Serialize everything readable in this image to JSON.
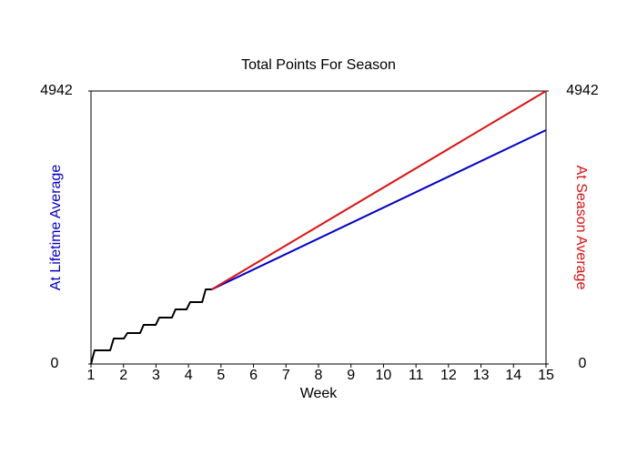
{
  "chart_data": {
    "type": "line",
    "title": "Total Points For Season",
    "xlabel": "Week",
    "xlim": [
      1,
      15
    ],
    "xticks": [
      1,
      2,
      3,
      4,
      5,
      6,
      7,
      8,
      9,
      10,
      11,
      12,
      13,
      14,
      15
    ],
    "ylim": [
      0,
      4942
    ],
    "yticks": [
      0,
      4942
    ],
    "y2lim": [
      0,
      4942
    ],
    "y2ticks": [
      0,
      4942
    ],
    "series": [
      {
        "color": "#000000",
        "x": [
          1,
          1.11,
          1.59,
          1.7,
          2.01,
          2.12,
          2.51,
          2.62,
          2.99,
          3.1,
          3.49,
          3.6,
          3.94,
          4.05,
          4.42,
          4.53,
          4.72
        ],
        "values": [
          0,
          247,
          247,
          461,
          461,
          560,
          560,
          708,
          708,
          840,
          840,
          988,
          988,
          1120,
          1120,
          1351,
          1351
        ]
      },
      {
        "name": "At Lifetime Average",
        "color": "#0000cc",
        "x": [
          4.72,
          15
        ],
        "values": [
          1351,
          4234
        ]
      },
      {
        "name": "At Season Average",
        "color": "#dd1111",
        "axis": "y2",
        "x": [
          4.72,
          15
        ],
        "values": [
          1351,
          4942
        ]
      }
    ]
  }
}
